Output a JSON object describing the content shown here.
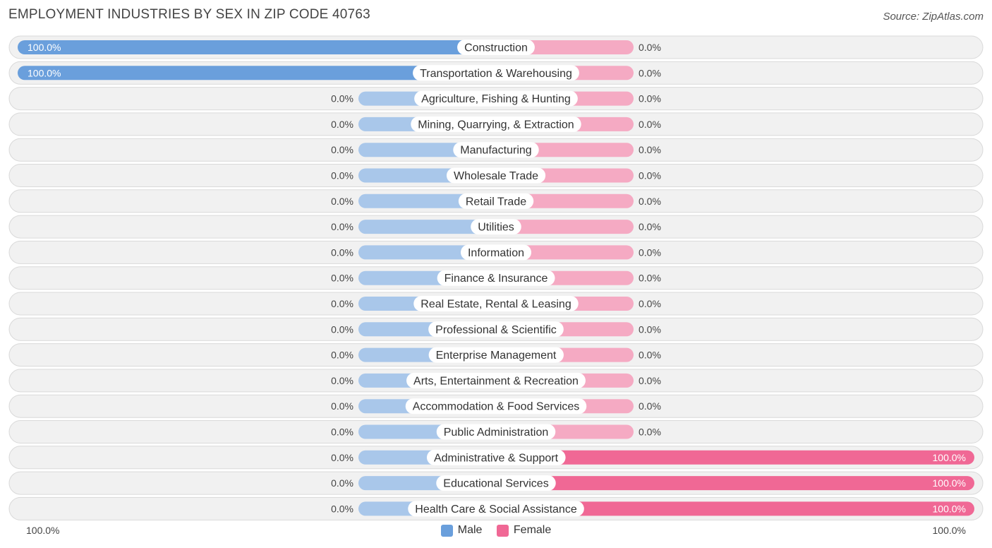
{
  "title": "EMPLOYMENT INDUSTRIES BY SEX IN ZIP CODE 40763",
  "source": "Source: ZipAtlas.com",
  "axis": {
    "left_label": "100.0%",
    "right_label": "100.0%"
  },
  "legend": {
    "male": "Male",
    "female": "Female"
  },
  "colors": {
    "male_strong": "#6a9fdc",
    "male_light": "#a9c7ea",
    "female_strong": "#f06895",
    "female_light": "#f5aac3"
  },
  "chart_data": {
    "type": "bar",
    "title": "EMPLOYMENT INDUSTRIES BY SEX IN ZIP CODE 40763",
    "categories": [
      "Construction",
      "Transportation & Warehousing",
      "Agriculture, Fishing & Hunting",
      "Mining, Quarrying, & Extraction",
      "Manufacturing",
      "Wholesale Trade",
      "Retail Trade",
      "Utilities",
      "Information",
      "Finance & Insurance",
      "Real Estate, Rental & Leasing",
      "Professional & Scientific",
      "Enterprise Management",
      "Arts, Entertainment & Recreation",
      "Accommodation & Food Services",
      "Public Administration",
      "Administrative & Support",
      "Educational Services",
      "Health Care & Social Assistance"
    ],
    "series": [
      {
        "name": "Male",
        "values": [
          100,
          100,
          0,
          0,
          0,
          0,
          0,
          0,
          0,
          0,
          0,
          0,
          0,
          0,
          0,
          0,
          0,
          0,
          0
        ]
      },
      {
        "name": "Female",
        "values": [
          0,
          0,
          0,
          0,
          0,
          0,
          0,
          0,
          0,
          0,
          0,
          0,
          0,
          0,
          0,
          0,
          100,
          100,
          100
        ]
      }
    ],
    "male_labels": [
      "100.0%",
      "100.0%",
      "0.0%",
      "0.0%",
      "0.0%",
      "0.0%",
      "0.0%",
      "0.0%",
      "0.0%",
      "0.0%",
      "0.0%",
      "0.0%",
      "0.0%",
      "0.0%",
      "0.0%",
      "0.0%",
      "0.0%",
      "0.0%",
      "0.0%"
    ],
    "female_labels": [
      "0.0%",
      "0.0%",
      "0.0%",
      "0.0%",
      "0.0%",
      "0.0%",
      "0.0%",
      "0.0%",
      "0.0%",
      "0.0%",
      "0.0%",
      "0.0%",
      "0.0%",
      "0.0%",
      "0.0%",
      "0.0%",
      "100.0%",
      "100.0%",
      "100.0%"
    ],
    "xlim": [
      -100,
      100
    ],
    "legend_position": "bottom-center"
  }
}
